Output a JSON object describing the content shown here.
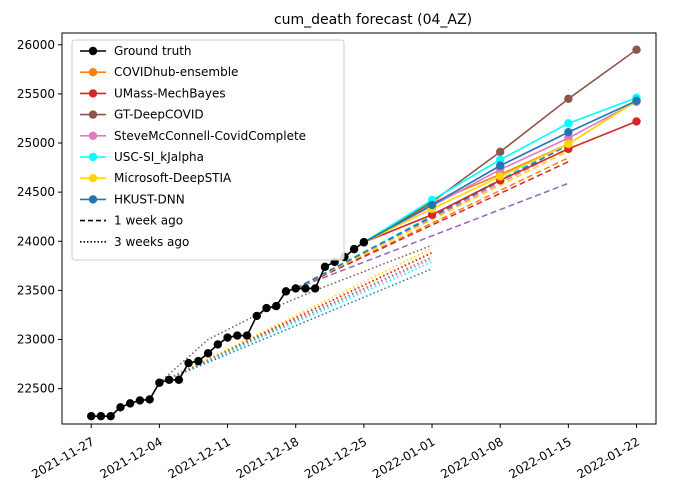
{
  "chart_data": {
    "type": "line",
    "title": "cum_death forecast (04_AZ)",
    "xlabel": "",
    "ylabel": "",
    "grid": false,
    "legend_placement": "top-left",
    "x_ticks": [
      "2021-11-27",
      "2021-12-04",
      "2021-12-11",
      "2021-12-18",
      "2021-12-25",
      "2022-01-01",
      "2022-01-08",
      "2022-01-15",
      "2022-01-22"
    ],
    "y_ticks": [
      22500,
      23000,
      23500,
      24000,
      24500,
      25000,
      25500,
      26000
    ],
    "xlim": [
      "2021-11-24",
      "2022-01-24"
    ],
    "ylim": [
      22140,
      26120
    ],
    "legend": [
      {
        "label": "Ground truth",
        "color": "#000000",
        "style": "solid",
        "marker": true
      },
      {
        "label": "COVIDhub-ensemble",
        "color": "#ff7f0e",
        "style": "solid",
        "marker": true
      },
      {
        "label": "UMass-MechBayes",
        "color": "#d62728",
        "style": "solid",
        "marker": true
      },
      {
        "label": "GT-DeepCOVID",
        "color": "#8c564b",
        "style": "solid",
        "marker": true
      },
      {
        "label": "SteveMcConnell-CovidComplete",
        "color": "#e377c2",
        "style": "solid",
        "marker": true
      },
      {
        "label": "USC-SI_kJalpha",
        "color": "#00ffff",
        "style": "solid",
        "marker": true
      },
      {
        "label": "Microsoft-DeepSTIA",
        "color": "#ffd700",
        "style": "solid",
        "marker": true
      },
      {
        "label": "HKUST-DNN",
        "color": "#1f77b4",
        "style": "solid",
        "marker": true
      },
      {
        "label": "1 week ago",
        "color": "#000000",
        "style": "dashed",
        "marker": false
      },
      {
        "label": "3 weeks ago",
        "color": "#000000",
        "style": "dotted",
        "marker": false
      }
    ],
    "series": [
      {
        "name": "Ground truth",
        "color": "#000000",
        "style": "solid",
        "marker": true,
        "z": 10,
        "points": [
          [
            "2021-11-27",
            22220
          ],
          [
            "2021-11-28",
            22220
          ],
          [
            "2021-11-29",
            22220
          ],
          [
            "2021-11-30",
            22310
          ],
          [
            "2021-12-01",
            22350
          ],
          [
            "2021-12-02",
            22380
          ],
          [
            "2021-12-03",
            22390
          ],
          [
            "2021-12-04",
            22560
          ],
          [
            "2021-12-05",
            22590
          ],
          [
            "2021-12-06",
            22590
          ],
          [
            "2021-12-07",
            22760
          ],
          [
            "2021-12-08",
            22780
          ],
          [
            "2021-12-09",
            22860
          ],
          [
            "2021-12-10",
            22950
          ],
          [
            "2021-12-11",
            23020
          ],
          [
            "2021-12-12",
            23040
          ],
          [
            "2021-12-13",
            23040
          ],
          [
            "2021-12-14",
            23240
          ],
          [
            "2021-12-15",
            23320
          ],
          [
            "2021-12-16",
            23340
          ],
          [
            "2021-12-17",
            23490
          ],
          [
            "2021-12-18",
            23520
          ],
          [
            "2021-12-19",
            23520
          ],
          [
            "2021-12-20",
            23520
          ],
          [
            "2021-12-21",
            23740
          ],
          [
            "2021-12-22",
            23790
          ],
          [
            "2021-12-23",
            23840
          ],
          [
            "2021-12-24",
            23920
          ],
          [
            "2021-12-25",
            23990
          ]
        ]
      },
      {
        "color": "#ff7f0e",
        "style": "solid",
        "marker": true,
        "z": 5,
        "points": [
          [
            "2021-12-25",
            23990
          ],
          [
            "2022-01-01",
            24390
          ],
          [
            "2022-01-08",
            24680
          ],
          [
            "2022-01-15",
            24990
          ],
          [
            "2022-01-22",
            25430
          ]
        ]
      },
      {
        "color": "#d62728",
        "style": "solid",
        "marker": true,
        "z": 5,
        "points": [
          [
            "2021-12-25",
            23990
          ],
          [
            "2022-01-01",
            24270
          ],
          [
            "2022-01-08",
            24620
          ],
          [
            "2022-01-15",
            24940
          ],
          [
            "2022-01-22",
            25220
          ]
        ]
      },
      {
        "color": "#8c564b",
        "style": "solid",
        "marker": true,
        "z": 5,
        "points": [
          [
            "2021-12-25",
            23990
          ],
          [
            "2022-01-01",
            24400
          ],
          [
            "2022-01-08",
            24910
          ],
          [
            "2022-01-15",
            25450
          ],
          [
            "2022-01-22",
            25950
          ]
        ]
      },
      {
        "color": "#e377c2",
        "style": "solid",
        "marker": true,
        "z": 5,
        "points": [
          [
            "2021-12-25",
            23990
          ],
          [
            "2022-01-01",
            24360
          ],
          [
            "2022-01-08",
            24730
          ],
          [
            "2022-01-15",
            25050
          ],
          [
            "2022-01-22",
            25420
          ]
        ]
      },
      {
        "color": "#00ffff",
        "style": "solid",
        "marker": true,
        "z": 6,
        "points": [
          [
            "2021-12-25",
            23990
          ],
          [
            "2022-01-01",
            24420
          ],
          [
            "2022-01-08",
            24830
          ],
          [
            "2022-01-15",
            25200
          ],
          [
            "2022-01-22",
            25460
          ]
        ]
      },
      {
        "color": "#ffd700",
        "style": "solid",
        "marker": true,
        "z": 5,
        "points": [
          [
            "2021-12-25",
            23990
          ],
          [
            "2022-01-01",
            24330
          ],
          [
            "2022-01-08",
            24660
          ],
          [
            "2022-01-15",
            24990
          ],
          [
            "2022-01-22",
            25430
          ]
        ]
      },
      {
        "color": "#1f77b4",
        "style": "solid",
        "marker": true,
        "z": 7,
        "points": [
          [
            "2021-12-25",
            23990
          ],
          [
            "2022-01-01",
            24370
          ],
          [
            "2022-01-08",
            24770
          ],
          [
            "2022-01-15",
            25110
          ],
          [
            "2022-01-22",
            25430
          ]
        ]
      },
      {
        "color": "#ff7f0e",
        "style": "dashed",
        "marker": false,
        "z": 2,
        "points": [
          [
            "2021-12-18",
            23520
          ],
          [
            "2022-01-15",
            24850
          ]
        ]
      },
      {
        "color": "#d62728",
        "style": "dashed",
        "marker": false,
        "z": 2,
        "points": [
          [
            "2021-12-18",
            23520
          ],
          [
            "2022-01-15",
            24810
          ]
        ]
      },
      {
        "color": "#9467bd",
        "style": "dashed",
        "marker": false,
        "z": 2,
        "points": [
          [
            "2021-12-18",
            23520
          ],
          [
            "2022-01-15",
            24590
          ]
        ]
      },
      {
        "color": "#e377c2",
        "style": "dashed",
        "marker": false,
        "z": 2,
        "points": [
          [
            "2021-12-18",
            23520
          ],
          [
            "2022-01-15",
            24950
          ]
        ]
      },
      {
        "color": "#00ffff",
        "style": "dashed",
        "marker": false,
        "z": 2,
        "points": [
          [
            "2021-12-18",
            23520
          ],
          [
            "2022-01-15",
            25000
          ]
        ]
      },
      {
        "color": "#ffd700",
        "style": "dashed",
        "marker": false,
        "z": 2,
        "points": [
          [
            "2021-12-18",
            23520
          ],
          [
            "2022-01-15",
            24920
          ]
        ]
      },
      {
        "color": "#1f77b4",
        "style": "dashed",
        "marker": false,
        "z": 2,
        "points": [
          [
            "2021-12-18",
            23520
          ],
          [
            "2022-01-15",
            24980
          ]
        ]
      },
      {
        "color": "#8c564b",
        "style": "dotted",
        "marker": false,
        "z": 1,
        "points": [
          [
            "2021-12-04",
            22560
          ],
          [
            "2021-12-09",
            23000
          ],
          [
            "2021-12-14",
            23250
          ],
          [
            "2021-12-20",
            23500
          ],
          [
            "2022-01-01",
            23960
          ]
        ]
      },
      {
        "color": "#ff7f0e",
        "style": "dotted",
        "marker": false,
        "z": 1,
        "points": [
          [
            "2021-12-04",
            22560
          ],
          [
            "2022-01-01",
            23890
          ]
        ]
      },
      {
        "color": "#d62728",
        "style": "dotted",
        "marker": false,
        "z": 1,
        "points": [
          [
            "2021-12-04",
            22560
          ],
          [
            "2022-01-01",
            23880
          ]
        ]
      },
      {
        "color": "#ffd700",
        "style": "dotted",
        "marker": false,
        "z": 1,
        "points": [
          [
            "2021-12-04",
            22560
          ],
          [
            "2022-01-01",
            23930
          ]
        ]
      },
      {
        "color": "#e377c2",
        "style": "dotted",
        "marker": false,
        "z": 1,
        "points": [
          [
            "2021-12-04",
            22560
          ],
          [
            "2022-01-01",
            23820
          ]
        ]
      },
      {
        "color": "#00ffff",
        "style": "dotted",
        "marker": false,
        "z": 1,
        "points": [
          [
            "2021-12-04",
            22560
          ],
          [
            "2022-01-01",
            23790
          ]
        ]
      },
      {
        "color": "#1f77b4",
        "style": "dotted",
        "marker": false,
        "z": 1,
        "points": [
          [
            "2021-12-04",
            22560
          ],
          [
            "2022-01-01",
            23720
          ]
        ]
      },
      {
        "color": "#7f7f7f",
        "style": "dotted",
        "marker": false,
        "z": 1,
        "points": [
          [
            "2021-12-04",
            22560
          ],
          [
            "2022-01-01",
            23840
          ]
        ]
      }
    ]
  }
}
